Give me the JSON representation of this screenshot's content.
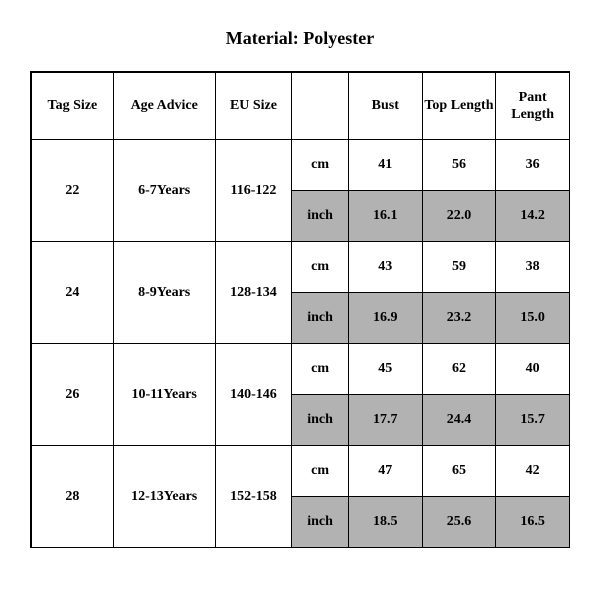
{
  "title": "Material: Polyester",
  "style": {
    "background_color": "#ffffff",
    "text_color": "#000000",
    "border_color": "#000000",
    "shaded_row_color": "#b2b2b2",
    "font_family": "Times New Roman",
    "title_fontsize": 18,
    "cell_fontsize": 14,
    "cell_fontweight": "bold"
  },
  "headers": {
    "tag_size": "Tag Size",
    "age_advice": "Age Advice",
    "eu_size": "EU Size",
    "unit_blank": "",
    "bust": "Bust",
    "top_length": "Top Length",
    "pant_length": "Pant Length"
  },
  "units": {
    "cm": "cm",
    "inch": "inch"
  },
  "rows": [
    {
      "tag": "22",
      "age": "6-7Years",
      "eu": "116-122",
      "cm": {
        "bust": "41",
        "top": "56",
        "pant": "36"
      },
      "inch": {
        "bust": "16.1",
        "top": "22.0",
        "pant": "14.2"
      }
    },
    {
      "tag": "24",
      "age": "8-9Years",
      "eu": "128-134",
      "cm": {
        "bust": "43",
        "top": "59",
        "pant": "38"
      },
      "inch": {
        "bust": "16.9",
        "top": "23.2",
        "pant": "15.0"
      }
    },
    {
      "tag": "26",
      "age": "10-11Years",
      "eu": "140-146",
      "cm": {
        "bust": "45",
        "top": "62",
        "pant": "40"
      },
      "inch": {
        "bust": "17.7",
        "top": "24.4",
        "pant": "15.7"
      }
    },
    {
      "tag": "28",
      "age": "12-13Years",
      "eu": "152-158",
      "cm": {
        "bust": "47",
        "top": "65",
        "pant": "42"
      },
      "inch": {
        "bust": "18.5",
        "top": "25.6",
        "pant": "16.5"
      }
    }
  ]
}
